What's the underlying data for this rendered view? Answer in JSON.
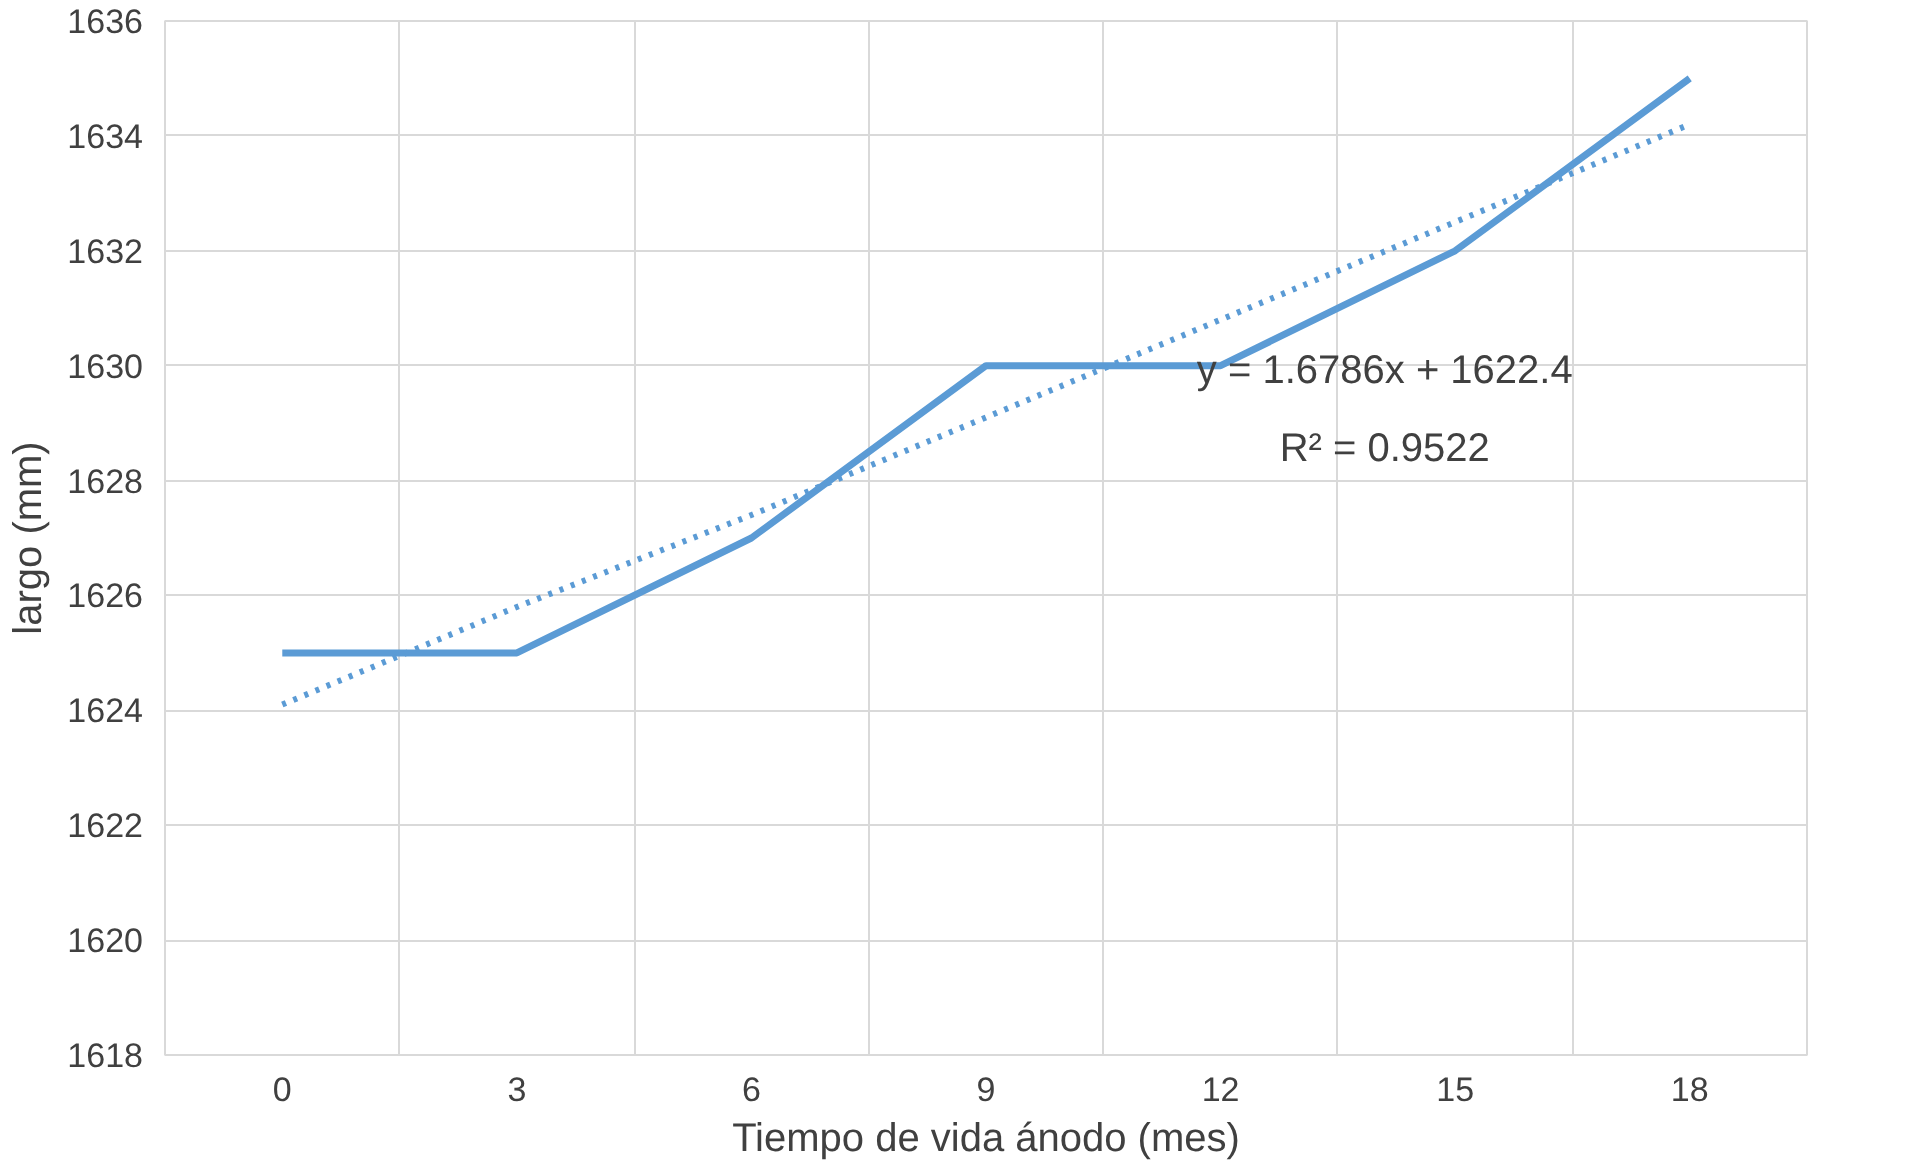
{
  "chart_data": {
    "type": "line",
    "xlabel": "Tiempo de vida ánodo (mes)",
    "ylabel": "largo (mm)",
    "categories": [
      "0",
      "3",
      "6",
      "9",
      "12",
      "15",
      "18"
    ],
    "series": [
      {
        "color": "#5b9bd5",
        "values": [
          1625,
          1625,
          1627,
          1630,
          1630,
          1632,
          1635
        ],
        "line_style": "solid"
      },
      {
        "color": "#5b9bd5",
        "values": [
          1624.1,
          1625.8,
          1627.4,
          1629.1,
          1630.8,
          1632.5,
          1634.2
        ],
        "line_style": "dotted"
      }
    ],
    "annotations": [
      "y = 1.6786x + 1622.4",
      "R² = 0.9522"
    ],
    "ylim": [
      1618,
      1636
    ],
    "yticks": [
      1618,
      1620,
      1622,
      1624,
      1626,
      1628,
      1630,
      1632,
      1634,
      1636
    ],
    "grid": true
  }
}
